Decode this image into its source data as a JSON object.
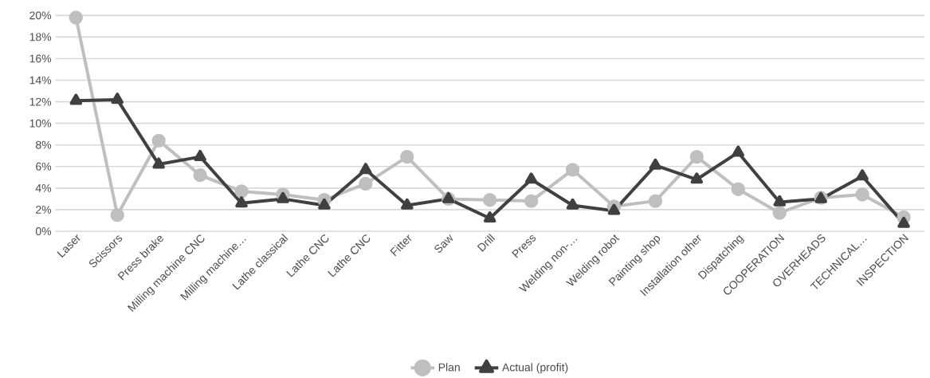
{
  "chart_data": {
    "type": "line",
    "categories": [
      "Laser",
      "Scissors",
      "Press brake",
      "Milling machine CNC",
      "Milling machine…",
      "Lathe classical",
      "Lathe CNC",
      "Lathe CNC",
      "Fitter",
      "Saw",
      "Drill",
      "Press",
      "Welding non-…",
      "Welding robot",
      "Painting shop",
      "Installation other",
      "Dispatching",
      "COOPERATION",
      "OVERHEADS",
      "TECHNICAL…",
      "INSPECTION"
    ],
    "series": [
      {
        "name": "Plan",
        "color": "#bfbfbf",
        "marker": "circle",
        "values": [
          19.8,
          1.5,
          8.4,
          5.2,
          3.7,
          3.4,
          2.9,
          4.4,
          6.9,
          3.0,
          2.9,
          2.8,
          5.7,
          2.3,
          2.8,
          6.9,
          3.9,
          1.7,
          3.1,
          3.4,
          1.3
        ]
      },
      {
        "name": "Actual (profit)",
        "color": "#404040",
        "marker": "triangle",
        "values": [
          12.1,
          12.2,
          6.2,
          6.9,
          2.6,
          3.0,
          2.4,
          5.7,
          2.4,
          3.0,
          1.2,
          4.8,
          2.4,
          1.9,
          6.1,
          4.8,
          7.3,
          2.7,
          3.0,
          5.1,
          0.7
        ]
      }
    ],
    "ylim": [
      0,
      20
    ],
    "yticks": [
      {
        "value": 0,
        "label": "0%"
      },
      {
        "value": 2,
        "label": "2%"
      },
      {
        "value": 4,
        "label": "4%"
      },
      {
        "value": 6,
        "label": "6%"
      },
      {
        "value": 8,
        "label": "8%"
      },
      {
        "value": 10,
        "label": "10%"
      },
      {
        "value": 12,
        "label": "12%"
      },
      {
        "value": 14,
        "label": "14%"
      },
      {
        "value": 16,
        "label": "16%"
      },
      {
        "value": 18,
        "label": "18%"
      },
      {
        "value": 20,
        "label": "20%"
      }
    ],
    "grid": "y",
    "legend": "bottom",
    "line_style": "solid"
  }
}
